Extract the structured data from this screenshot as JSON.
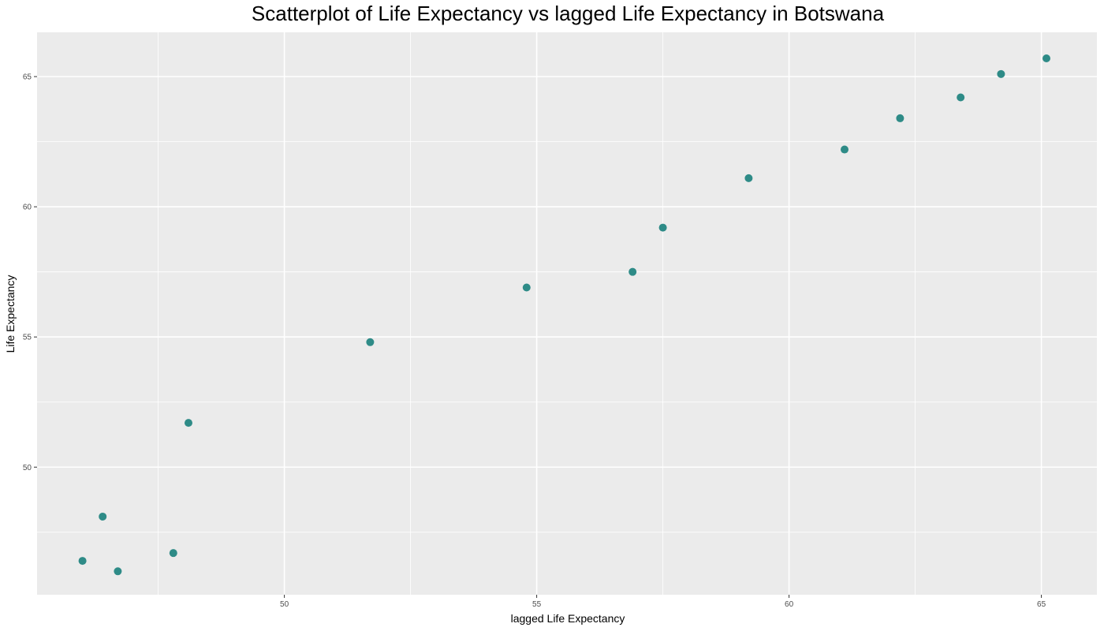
{
  "chart_data": {
    "type": "scatter",
    "title": "Scatterplot of Life Expectancy vs lagged Life Expectancy in Botswana",
    "xlabel": "lagged Life Expectancy",
    "ylabel": "Life Expectancy",
    "xlim": [
      45.1,
      66.1
    ],
    "ylim": [
      45.1,
      66.7
    ],
    "x_ticks": [
      50,
      55,
      60,
      65
    ],
    "y_ticks": [
      50,
      55,
      60,
      65
    ],
    "x_tick_labels": [
      "50",
      "55",
      "60",
      "65"
    ],
    "y_tick_labels": [
      "50",
      "55",
      "60",
      "65"
    ],
    "grid": true,
    "panel_background": "#ebebeb",
    "grid_color": "#ffffff",
    "point_color": "#2e8b87",
    "series": [
      {
        "x": [
          46.0,
          46.4,
          46.7,
          47.8,
          48.1,
          51.7,
          54.8,
          56.9,
          57.5,
          59.2,
          61.1,
          62.2,
          63.4,
          64.2,
          65.1
        ],
        "y": [
          46.4,
          48.1,
          46.0,
          46.7,
          51.7,
          54.8,
          56.9,
          57.5,
          59.2,
          61.1,
          62.2,
          63.4,
          64.2,
          65.1,
          65.7
        ]
      }
    ]
  }
}
